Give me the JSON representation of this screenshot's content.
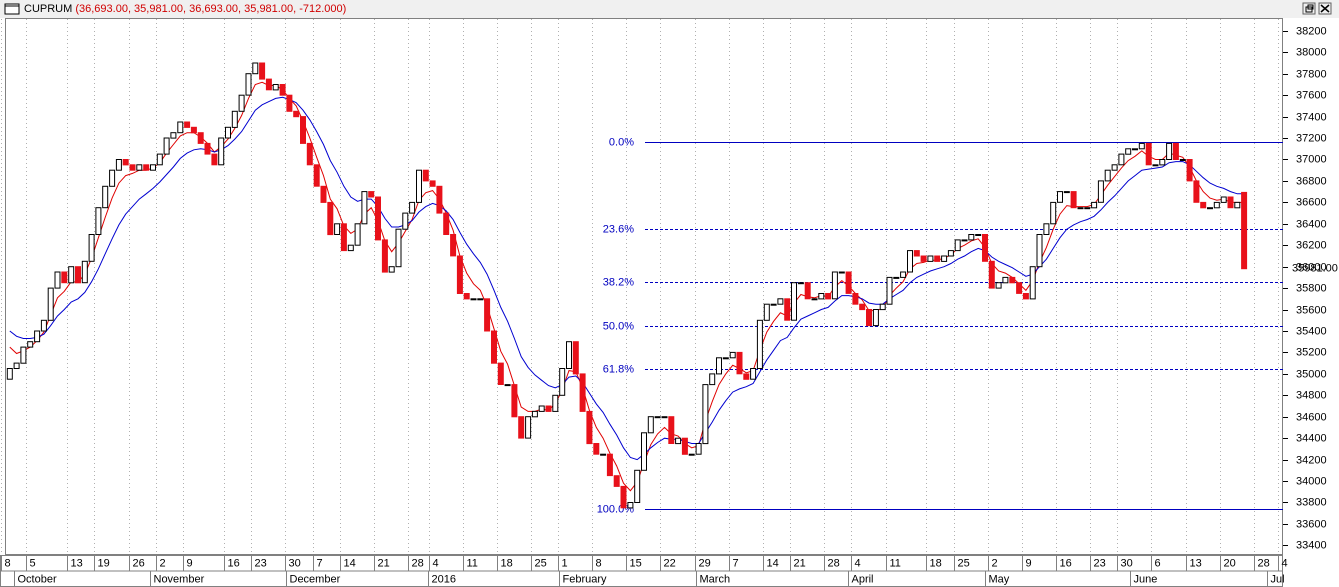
{
  "chart_data": {
    "type": "candlestick",
    "name": "CUPRUM",
    "quote": "(36,693.00, 35,981.00, 36,693.00, 35,981.00, -712.000)",
    "up_color": "#ffffff",
    "down_color": "#e8111a",
    "open": [
      34950,
      35050,
      35100,
      35250,
      35300,
      35400,
      35500,
      35800,
      35950,
      35850,
      36000,
      35850,
      36050,
      36300,
      36550,
      36750,
      36900,
      37000,
      36950,
      36900,
      36950,
      36900,
      36950,
      37050,
      37200,
      37250,
      37350,
      37300,
      37250,
      37150,
      37050,
      36950,
      37200,
      37300,
      37450,
      37600,
      37800,
      37900,
      37750,
      37650,
      37700,
      37600,
      37450,
      37400,
      37150,
      36950,
      36750,
      36600,
      36300,
      36400,
      36150,
      36200,
      36400,
      36700,
      36650,
      36250,
      35950,
      36000,
      36350,
      36500,
      36600,
      36900,
      36800,
      36750,
      36500,
      36300,
      36100,
      35750,
      35700,
      35700,
      35700,
      35400,
      35100,
      34900,
      34900,
      34600,
      34400,
      34600,
      34650,
      34700,
      34650,
      34800,
      35050,
      35300,
      35000,
      34650,
      34350,
      34250,
      34250,
      34050,
      33950,
      33750,
      33800,
      34100,
      34450,
      34600,
      34600,
      34600,
      34350,
      34400,
      34250,
      34250,
      34350,
      34900,
      35000,
      35150,
      35150,
      35200,
      35000,
      34950,
      35050,
      35500,
      35650,
      35650,
      35700,
      35500,
      35850,
      35850,
      35700,
      35700,
      35750,
      35700,
      35950,
      35950,
      35750,
      35650,
      35600,
      35450,
      35600,
      35650,
      35900,
      35900,
      35950,
      36150,
      36100,
      36050,
      36100,
      36050,
      36100,
      36150,
      36250,
      36250,
      36300,
      36300,
      36050,
      35800,
      35850,
      35900,
      35850,
      35750,
      35700,
      36000,
      36300,
      36400,
      36600,
      36700,
      36700,
      36550,
      36550,
      36550,
      36600,
      36800,
      36900,
      36950,
      37050,
      37100,
      37100,
      37150,
      36950,
      36950,
      37000,
      37150,
      37000,
      37000,
      36800,
      36600,
      36550,
      36550,
      36600,
      36650,
      36550,
      36693
    ],
    "close": [
      35050,
      35100,
      35250,
      35300,
      35400,
      35500,
      35800,
      35950,
      35850,
      36000,
      35850,
      36050,
      36300,
      36550,
      36750,
      36900,
      37000,
      36950,
      36900,
      36950,
      36900,
      36950,
      37050,
      37200,
      37250,
      37350,
      37300,
      37250,
      37150,
      37050,
      36950,
      37200,
      37300,
      37450,
      37600,
      37800,
      37900,
      37750,
      37650,
      37700,
      37600,
      37450,
      37400,
      37150,
      36950,
      36750,
      36600,
      36300,
      36400,
      36150,
      36200,
      36400,
      36700,
      36650,
      36250,
      35950,
      36000,
      36350,
      36500,
      36600,
      36900,
      36800,
      36750,
      36500,
      36300,
      36100,
      35750,
      35700,
      35700,
      35700,
      35400,
      35100,
      34900,
      34900,
      34600,
      34400,
      34600,
      34650,
      34700,
      34650,
      34800,
      35050,
      35300,
      35000,
      34650,
      34350,
      34250,
      34250,
      34050,
      33950,
      33750,
      33800,
      34100,
      34450,
      34600,
      34600,
      34600,
      34350,
      34400,
      34250,
      34250,
      34350,
      34900,
      35000,
      35150,
      35150,
      35200,
      35000,
      34950,
      35050,
      35500,
      35650,
      35650,
      35700,
      35500,
      35850,
      35850,
      35700,
      35700,
      35750,
      35700,
      35950,
      35950,
      35750,
      35650,
      35600,
      35450,
      35600,
      35650,
      35900,
      35900,
      35950,
      36150,
      36100,
      36050,
      36100,
      36050,
      36100,
      36150,
      36250,
      36250,
      36300,
      36300,
      36050,
      35800,
      35850,
      35900,
      35850,
      35750,
      35700,
      36000,
      36300,
      36400,
      36600,
      36700,
      36700,
      36550,
      36550,
      36550,
      36600,
      36800,
      36900,
      36950,
      37050,
      37100,
      37100,
      37150,
      36950,
      36950,
      37000,
      37150,
      37000,
      37000,
      36800,
      36600,
      36550,
      36550,
      36600,
      36650,
      36550,
      36600,
      35981
    ],
    "last_label": "35981.00",
    "overlays": [
      {
        "color": "#e00000",
        "values": [
          35250,
          35190,
          35215,
          35250,
          35310,
          35390,
          35550,
          35710,
          35770,
          35860,
          35855,
          35930,
          36080,
          36270,
          36460,
          36640,
          36780,
          36850,
          36870,
          36900,
          36900,
          36920,
          36970,
          37060,
          37140,
          37220,
          37250,
          37250,
          37210,
          37150,
          37070,
          37120,
          37190,
          37290,
          37410,
          37570,
          37700,
          37720,
          37690,
          37690,
          37650,
          37570,
          37500,
          37360,
          37200,
          37020,
          36850,
          36630,
          36540,
          36380,
          36310,
          36350,
          36490,
          36550,
          36430,
          36240,
          36140,
          36220,
          36330,
          36440,
          36620,
          36690,
          36710,
          36630,
          36500,
          36340,
          36100,
          35940,
          35840,
          35780,
          35630,
          35420,
          35210,
          35090,
          34890,
          34690,
          34650,
          34650,
          34670,
          34660,
          34720,
          34850,
          35030,
          35020,
          34870,
          34660,
          34500,
          34400,
          34260,
          34140,
          33980,
          33910,
          33990,
          34170,
          34340,
          34440,
          34500,
          34440,
          34420,
          34350,
          34310,
          34330,
          34560,
          34740,
          34900,
          35000,
          35080,
          35050,
          35010,
          35030,
          35220,
          35390,
          35490,
          35570,
          35540,
          35660,
          35740,
          35720,
          35710,
          35730,
          35720,
          35810,
          35870,
          35820,
          35750,
          35690,
          35590,
          35590,
          35610,
          35730,
          35800,
          35860,
          35980,
          36030,
          36040,
          36060,
          36060,
          36080,
          36110,
          36170,
          36200,
          36240,
          36260,
          36180,
          36030,
          35960,
          35940,
          35900,
          35840,
          35780,
          35870,
          36040,
          36180,
          36350,
          36490,
          36570,
          36560,
          36560,
          36560,
          36580,
          36670,
          36760,
          36840,
          36920,
          36990,
          37030,
          37080,
          37030,
          37000,
          37000,
          37060,
          37040,
          37020,
          36930,
          36800,
          36700,
          36640,
          36620,
          36630,
          36600,
          36600,
          36600
        ]
      },
      {
        "color": "#0000d0",
        "values": [
          35400,
          35350,
          35330,
          35330,
          35340,
          35370,
          35450,
          35540,
          35600,
          35670,
          35700,
          35760,
          35860,
          35980,
          36120,
          36260,
          36390,
          36490,
          36560,
          36630,
          36680,
          36730,
          36790,
          36860,
          36930,
          37010,
          37060,
          37090,
          37100,
          37090,
          37070,
          37090,
          37130,
          37190,
          37260,
          37360,
          37460,
          37510,
          37540,
          37570,
          37580,
          37560,
          37530,
          37460,
          37370,
          37260,
          37140,
          36990,
          36880,
          36750,
          36650,
          36610,
          36630,
          36630,
          36560,
          36450,
          36370,
          36370,
          36390,
          36430,
          36510,
          36560,
          36590,
          36570,
          36520,
          36440,
          36320,
          36210,
          36120,
          36040,
          35930,
          35780,
          35620,
          35490,
          35330,
          35160,
          35060,
          34990,
          34940,
          34890,
          34870,
          34900,
          34970,
          34980,
          34920,
          34820,
          34720,
          34640,
          34530,
          34430,
          34310,
          34220,
          34200,
          34250,
          34310,
          34360,
          34400,
          34390,
          34390,
          34370,
          34350,
          34350,
          34450,
          34550,
          34660,
          34750,
          34830,
          34860,
          34880,
          34910,
          35020,
          35130,
          35220,
          35310,
          35340,
          35430,
          35510,
          35540,
          35570,
          35600,
          35620,
          35680,
          35730,
          35730,
          35720,
          35700,
          35660,
          35650,
          35650,
          35700,
          35740,
          35780,
          35850,
          35900,
          35930,
          35960,
          35980,
          36000,
          36030,
          36070,
          36100,
          36140,
          36170,
          36150,
          36090,
          36050,
          36020,
          35990,
          35950,
          35910,
          35930,
          36000,
          36070,
          36170,
          36270,
          36350,
          36390,
          36420,
          36440,
          36470,
          36530,
          36600,
          36660,
          36730,
          36800,
          36850,
          36900,
          36910,
          36920,
          36930,
          36970,
          36980,
          36980,
          36950,
          36890,
          36830,
          36780,
          36750,
          36730,
          36700,
          36680,
          36680
        ]
      }
    ],
    "fib_color": "#0000c0",
    "fib_levels": [
      {
        "value": 37160,
        "label": "0.0%"
      },
      {
        "value": 36353,
        "label": "23.6%"
      },
      {
        "value": 35854,
        "label": "38.2%"
      },
      {
        "value": 35450,
        "label": "50.0%"
      },
      {
        "value": 35046,
        "label": "61.8%"
      },
      {
        "value": 33740,
        "label": "100.0%"
      }
    ],
    "xlim": [
      -0.7,
      186.7
    ],
    "ylim": [
      33310,
      38320
    ],
    "yticks": [
      33400,
      33600,
      33800,
      34000,
      34200,
      34400,
      34600,
      34800,
      35000,
      35200,
      35400,
      35600,
      35800,
      36000,
      36200,
      36400,
      36600,
      36800,
      37000,
      37200,
      37400,
      37600,
      37800,
      38000,
      38200
    ],
    "xticks": [
      {
        "value": -0.7,
        "label": "8"
      },
      {
        "value": 3,
        "label": "5"
      },
      {
        "value": 9,
        "label": "13"
      },
      {
        "value": 13,
        "label": "19"
      },
      {
        "value": 18,
        "label": "26"
      },
      {
        "value": 22,
        "label": "2"
      },
      {
        "value": 26,
        "label": "9"
      },
      {
        "value": 32,
        "label": "16"
      },
      {
        "value": 36,
        "label": "23"
      },
      {
        "value": 41,
        "label": "30"
      },
      {
        "value": 45,
        "label": "7"
      },
      {
        "value": 49,
        "label": "14"
      },
      {
        "value": 54,
        "label": "21"
      },
      {
        "value": 59,
        "label": "28"
      },
      {
        "value": 62,
        "label": "4"
      },
      {
        "value": 67,
        "label": "11"
      },
      {
        "value": 72,
        "label": "18"
      },
      {
        "value": 77,
        "label": "25"
      },
      {
        "value": 81,
        "label": "1"
      },
      {
        "value": 86,
        "label": "8"
      },
      {
        "value": 91,
        "label": "15"
      },
      {
        "value": 96,
        "label": "22"
      },
      {
        "value": 101,
        "label": "29"
      },
      {
        "value": 106,
        "label": "7"
      },
      {
        "value": 111,
        "label": "14"
      },
      {
        "value": 115,
        "label": "21"
      },
      {
        "value": 120,
        "label": "28"
      },
      {
        "value": 124,
        "label": "4"
      },
      {
        "value": 129,
        "label": "11"
      },
      {
        "value": 135,
        "label": "18"
      },
      {
        "value": 139,
        "label": "25"
      },
      {
        "value": 144,
        "label": "2"
      },
      {
        "value": 149,
        "label": "9"
      },
      {
        "value": 154,
        "label": "16"
      },
      {
        "value": 159,
        "label": "23"
      },
      {
        "value": 163,
        "label": "30"
      },
      {
        "value": 168,
        "label": "6"
      },
      {
        "value": 173,
        "label": "13"
      },
      {
        "value": 178,
        "label": "20"
      },
      {
        "value": 183,
        "label": "28"
      },
      {
        "value": 186.5,
        "label": "4"
      }
    ],
    "month_ticks": [
      {
        "value": 1,
        "label": "October"
      },
      {
        "value": 21,
        "label": "November"
      },
      {
        "value": 41,
        "label": "December"
      },
      {
        "value": 61.7,
        "label": "2016"
      },
      {
        "value": 81,
        "label": "February"
      },
      {
        "value": 101,
        "label": "March"
      },
      {
        "value": 123.4,
        "label": "April"
      },
      {
        "value": 143.4,
        "label": "May"
      },
      {
        "value": 164.7,
        "label": "June"
      },
      {
        "value": 184.8,
        "label": "Jul"
      }
    ],
    "grid": true
  }
}
